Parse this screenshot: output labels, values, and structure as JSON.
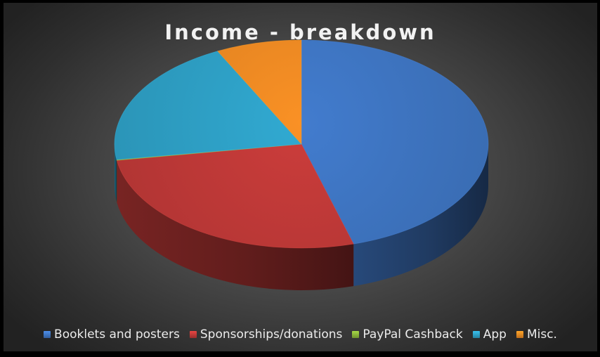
{
  "chart_data": {
    "type": "pie",
    "title": "Income - breakdown",
    "legend_position": "bottom",
    "three_d": true,
    "series": [
      {
        "name": "Booklets and posters",
        "value": 45.5,
        "color": "#3f76c4"
      },
      {
        "name": "Sponsorships/donations",
        "value": 27.0,
        "color": "#c23a38"
      },
      {
        "name": "PayPal Cashback",
        "value": 0.1,
        "color": "#8bb63a"
      },
      {
        "name": "App",
        "value": 20.0,
        "color": "#2fa2c8"
      },
      {
        "name": "Misc.",
        "value": 7.4,
        "color": "#ee8a23"
      }
    ]
  }
}
